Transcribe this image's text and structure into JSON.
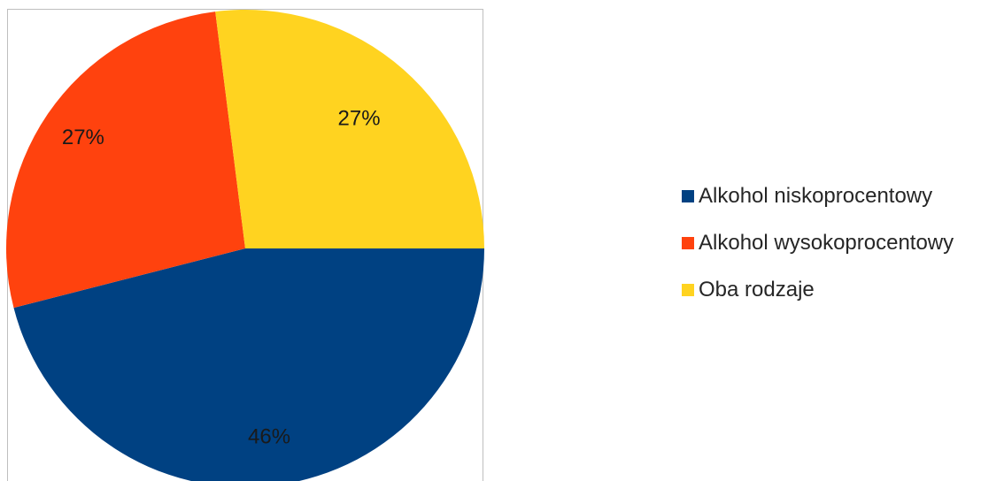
{
  "chart_data": {
    "type": "pie",
    "title": "",
    "categories": [
      "Alkohol niskoprocentowy",
      "Alkohol wysokoprocentowy",
      "Oba rodzaje"
    ],
    "values": [
      46,
      27,
      27
    ],
    "data_labels": [
      "46%",
      "27%",
      "27%"
    ],
    "colors": [
      "#004182",
      "#ff420e",
      "#ffd320"
    ],
    "legend_position": "right",
    "start_angle": "3 o'clock, clockwise"
  }
}
